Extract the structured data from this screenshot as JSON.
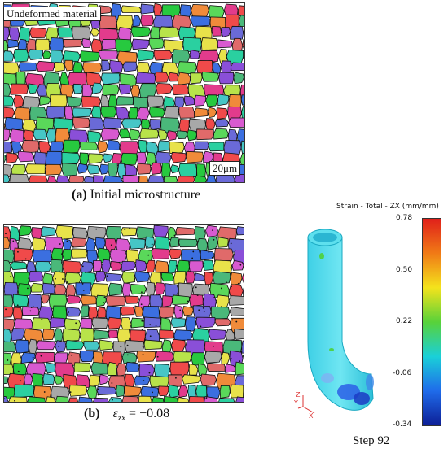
{
  "panel_a": {
    "label": "Undeformed material",
    "scale_bar": "20μm",
    "caption_letter": "(a)",
    "caption_text": "Initial microstructure"
  },
  "panel_b": {
    "caption_letter": "(b)",
    "symbol": "ε",
    "subscript": "zx",
    "value_text": " = −0.08"
  },
  "simulation": {
    "legend_title": "Strain - Total - ZX (mm/mm)",
    "ticks": [
      "0.78",
      "0.50",
      "0.22",
      "-0.06",
      "-0.34"
    ],
    "step_label": "Step 92",
    "axes": {
      "z": "Z",
      "y": "Y",
      "x": "X"
    },
    "colorbar": [
      "#e0201a",
      "#f07a16",
      "#f4e31c",
      "#58d23a",
      "#1ad0d8",
      "#1f6bea",
      "#0d1f96"
    ]
  }
}
